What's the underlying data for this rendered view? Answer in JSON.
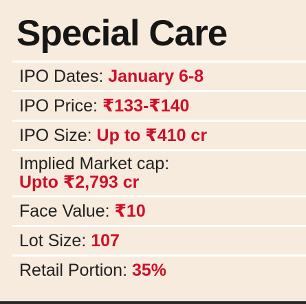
{
  "title": "Special Care",
  "rows": [
    {
      "label": "IPO Dates:",
      "value": "January 6-8"
    },
    {
      "label": "IPO Price:",
      "value": "₹133-₹140"
    },
    {
      "label": "IPO Size:",
      "value": "Up to ₹410 cr"
    },
    {
      "label": "Implied Market cap:",
      "value": "Upto ₹2,793 cr"
    },
    {
      "label": "Face Value:",
      "value": "₹10"
    },
    {
      "label": "Lot Size:",
      "value": "107"
    },
    {
      "label": "Retail Portion:",
      "value": "35%"
    }
  ],
  "colors": {
    "background": "#f7ebdd",
    "title": "#161616",
    "label": "#222222",
    "value": "#d0102a",
    "divider": "#ffffff",
    "bottom_rule": "#2a2a2a"
  }
}
